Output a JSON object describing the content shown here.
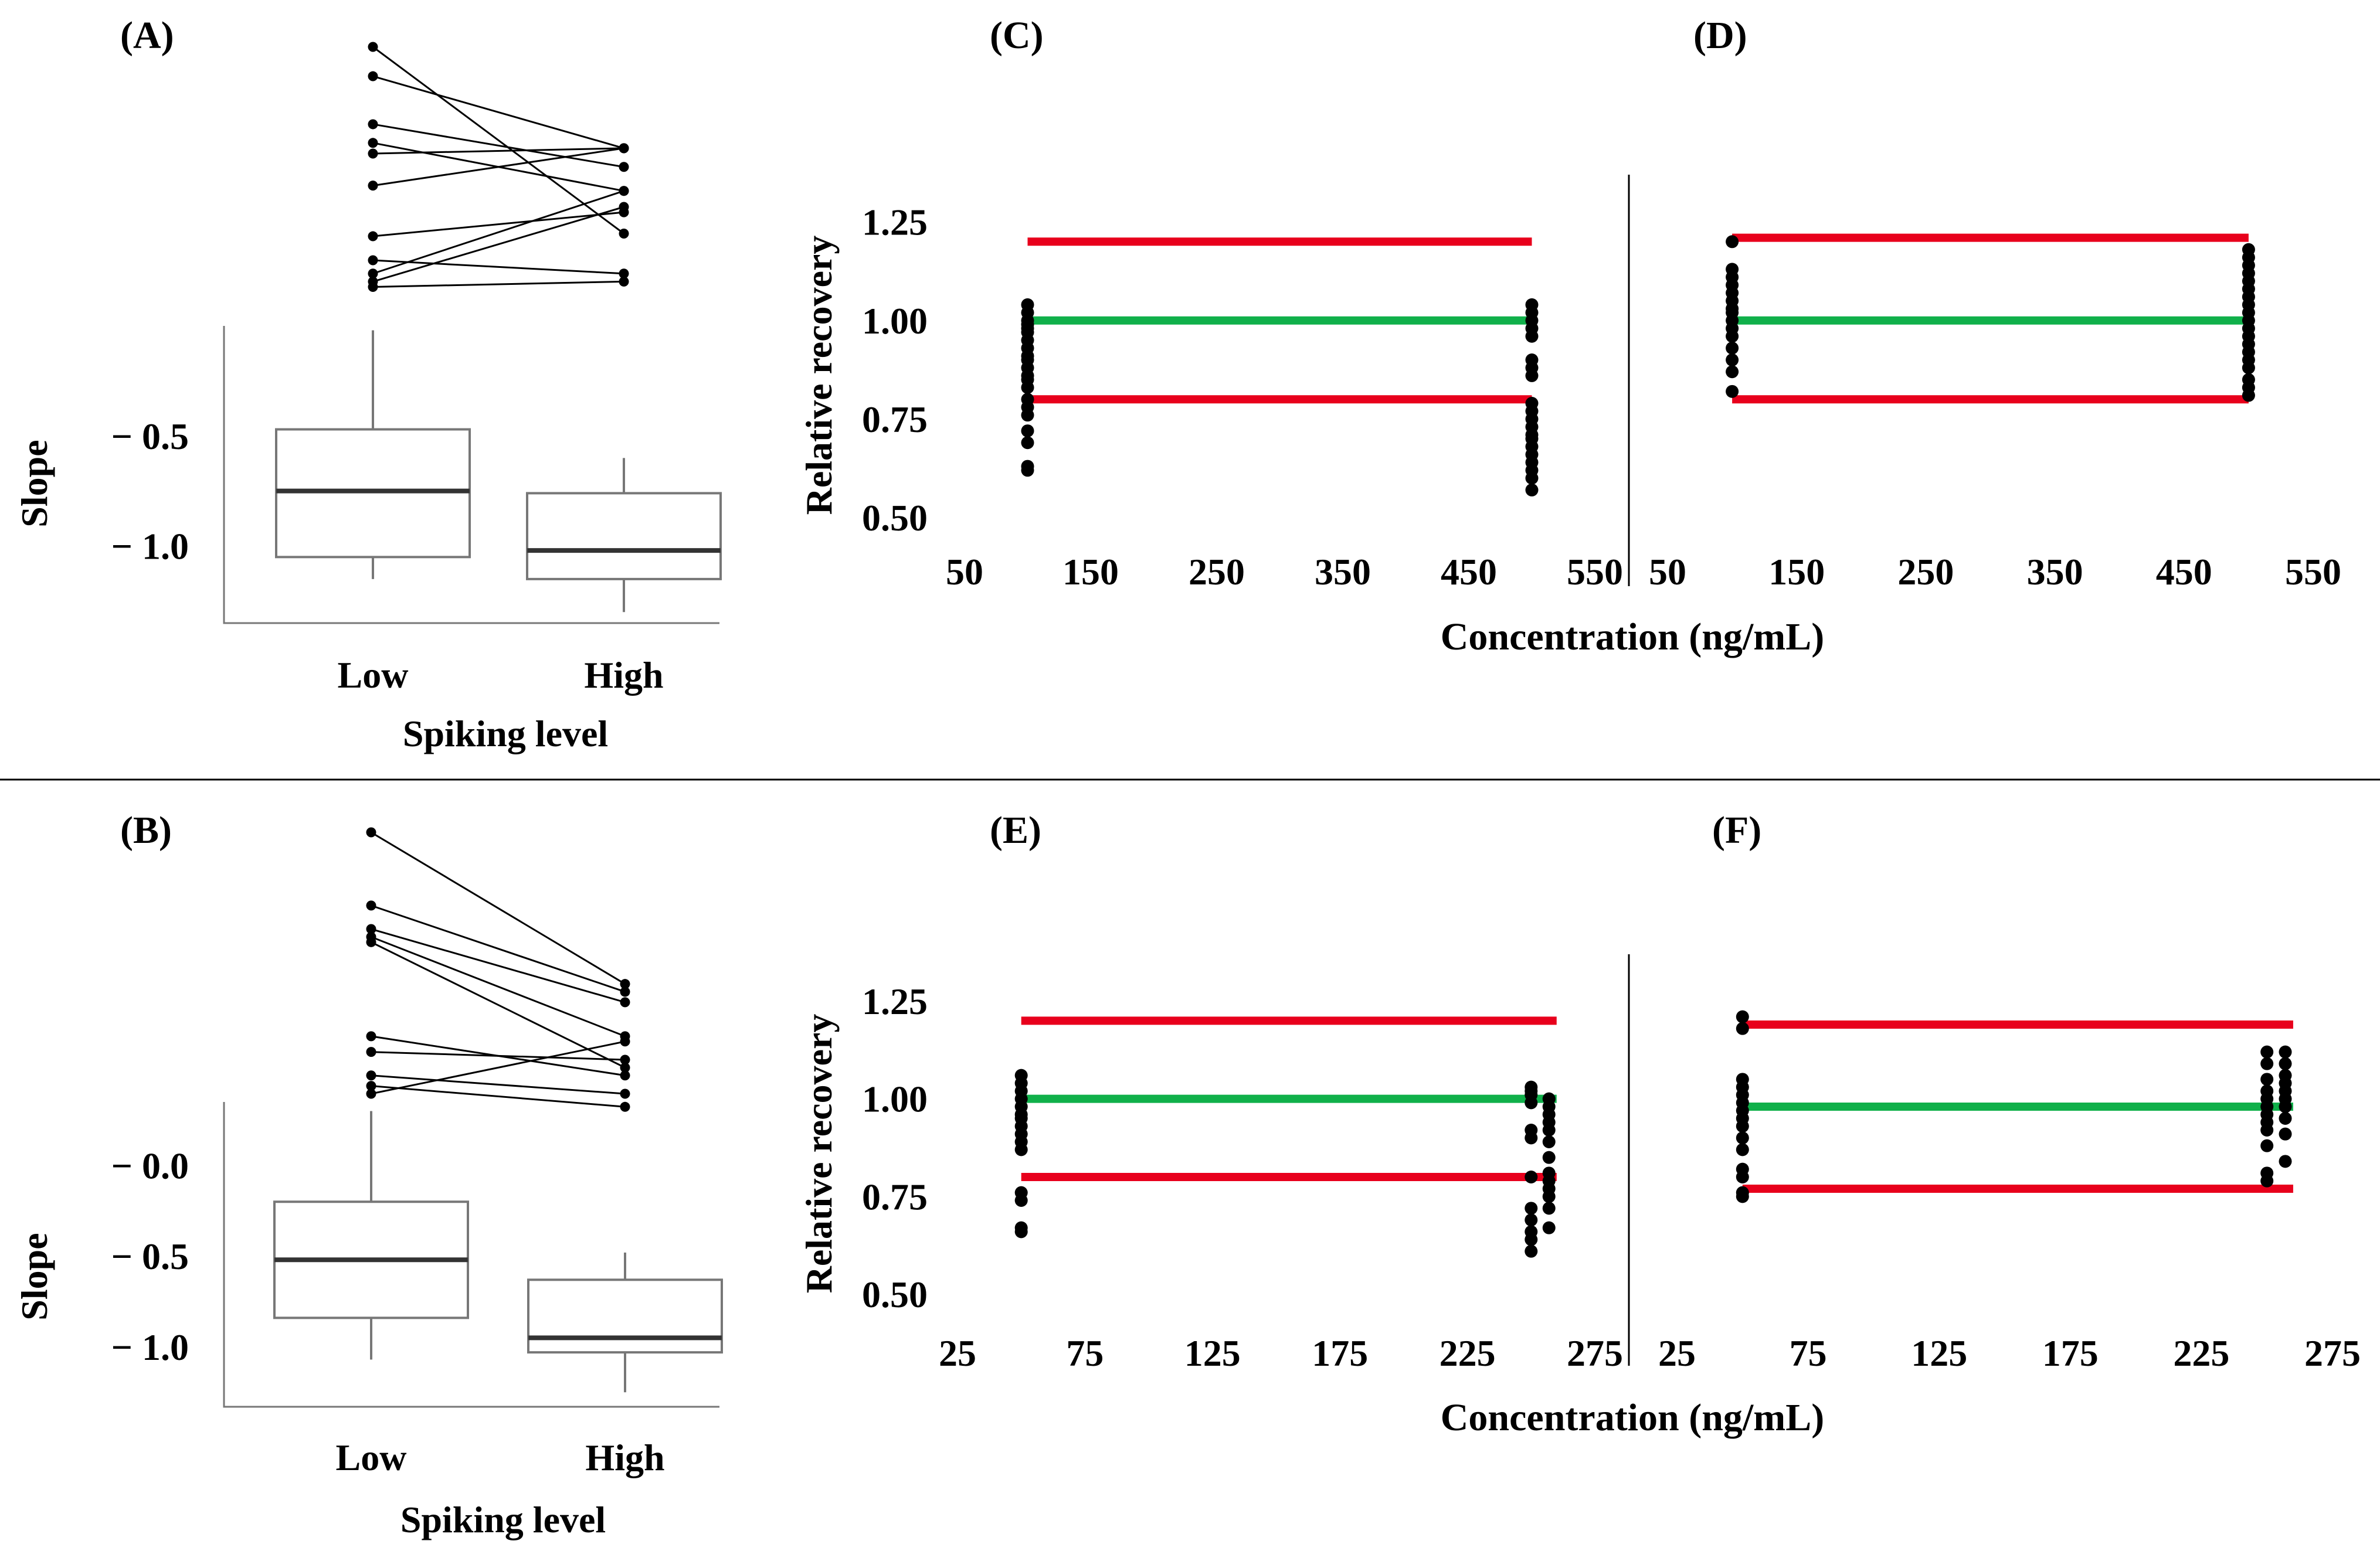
{
  "colors": {
    "limit_line": "#e8001c",
    "center_line": "#10b04a",
    "point": "#000000",
    "box": "#777777",
    "median": "#333333"
  },
  "chart_data": [
    {
      "panel": "(A)",
      "type": "box",
      "ylabel": "Slope",
      "xlabel": "Spiking level",
      "categories": [
        "Low",
        "High"
      ],
      "y_ticks": [
        "− 0.5",
        "− 1.0"
      ],
      "y_tick_values": [
        -0.5,
        -1.0
      ],
      "ylim": [
        -1.35,
        0.0
      ],
      "boxes": [
        {
          "category": "Low",
          "whisker_low": -1.15,
          "q1": -1.05,
          "median": -0.75,
          "q3": -0.47,
          "whisker_high": -0.02
        },
        {
          "category": "High",
          "whisker_low": -1.3,
          "q1": -1.15,
          "median": -1.02,
          "q3": -0.76,
          "whisker_high": -0.6
        }
      ],
      "paired_low": [
        1.0,
        0.89,
        0.71,
        0.64,
        0.6,
        0.48,
        0.29,
        0.2,
        0.15,
        0.12,
        0.1
      ],
      "paired_high": [
        0.3,
        0.62,
        0.55,
        0.46,
        0.62,
        0.62,
        0.38,
        0.15,
        0.46,
        0.4,
        0.12
      ],
      "paired_note": "paired points in relative scale (0 = lowest, 1 = highest) above the box plot"
    },
    {
      "panel": "(B)",
      "type": "box",
      "ylabel": "Slope",
      "xlabel": "Spiking level",
      "categories": [
        "Low",
        "High"
      ],
      "y_ticks": [
        "− 0.0",
        "− 0.5",
        "− 1.0"
      ],
      "y_tick_values": [
        0.0,
        -0.5,
        -1.0
      ],
      "ylim": [
        -1.33,
        0.35
      ],
      "boxes": [
        {
          "category": "Low",
          "whisker_low": -1.07,
          "q1": -0.84,
          "median": -0.52,
          "q3": -0.2,
          "whisker_high": 0.3
        },
        {
          "category": "High",
          "whisker_low": -1.25,
          "q1": -1.03,
          "median": -0.95,
          "q3": -0.63,
          "whisker_high": -0.48
        }
      ],
      "paired_low": [
        1.0,
        0.72,
        0.63,
        0.6,
        0.58,
        0.22,
        0.16,
        0.07,
        0.03,
        0.0
      ],
      "paired_high": [
        0.42,
        0.39,
        0.35,
        0.22,
        0.1,
        0.07,
        0.13,
        0.0,
        -0.05,
        0.2
      ],
      "paired_note": "paired points in relative scale (0 = lowest, 1 = highest) above the box plot"
    },
    {
      "panel": "(C)",
      "type": "scatter",
      "ylabel": "Relative recovery",
      "xlabel": "Concentration (ng/mL)",
      "xlim": [
        50,
        550
      ],
      "ylim": [
        0.5,
        1.37
      ],
      "x_ticks": [
        50,
        150,
        250,
        350,
        450,
        550
      ],
      "y_ticks": [
        "0.50",
        "0.75",
        "1.00",
        "1.25"
      ],
      "y_tick_values": [
        0.5,
        0.75,
        1.0,
        1.25
      ],
      "lines": [
        {
          "name": "upper limit",
          "y": 1.2,
          "x_range": [
            100,
            500
          ],
          "color_key": "limit_line"
        },
        {
          "name": "target",
          "y": 1.0,
          "x_range": [
            100,
            500
          ],
          "color_key": "center_line"
        },
        {
          "name": "lower limit",
          "y": 0.8,
          "x_range": [
            100,
            500
          ],
          "color_key": "limit_line"
        }
      ],
      "series": [
        {
          "x": 100,
          "values": [
            1.04,
            1.02,
            1.0,
            0.99,
            0.98,
            0.97,
            0.95,
            0.93,
            0.91,
            0.9,
            0.88,
            0.86,
            0.85,
            0.83,
            0.8,
            0.78,
            0.76,
            0.72,
            0.69,
            0.63,
            0.62
          ]
        },
        {
          "x": 500,
          "values": [
            1.04,
            1.02,
            1.0,
            0.98,
            0.96,
            0.9,
            0.88,
            0.86,
            0.79,
            0.77,
            0.75,
            0.73,
            0.71,
            0.7,
            0.68,
            0.66,
            0.64,
            0.62,
            0.6,
            0.57
          ]
        }
      ]
    },
    {
      "panel": "(D)",
      "type": "scatter",
      "ylabel": "",
      "xlabel": "Concentration (ng/mL)",
      "xlim": [
        50,
        550
      ],
      "ylim": [
        0.5,
        1.37
      ],
      "x_ticks": [
        50,
        150,
        250,
        350,
        450,
        550
      ],
      "lines": [
        {
          "name": "upper limit",
          "y": 1.21,
          "x_range": [
            100,
            500
          ],
          "color_key": "limit_line"
        },
        {
          "name": "target",
          "y": 1.0,
          "x_range": [
            100,
            500
          ],
          "color_key": "center_line"
        },
        {
          "name": "lower limit",
          "y": 0.8,
          "x_range": [
            100,
            500
          ],
          "color_key": "limit_line"
        }
      ],
      "series": [
        {
          "x": 100,
          "values": [
            1.2,
            1.13,
            1.11,
            1.09,
            1.07,
            1.05,
            1.03,
            1.02,
            1.0,
            0.98,
            0.96,
            0.93,
            0.9,
            0.87,
            0.82
          ]
        },
        {
          "x": 500,
          "values": [
            1.18,
            1.16,
            1.14,
            1.12,
            1.1,
            1.08,
            1.06,
            1.04,
            1.02,
            1.0,
            0.98,
            0.96,
            0.94,
            0.92,
            0.9,
            0.88,
            0.85,
            0.83,
            0.81
          ]
        }
      ]
    },
    {
      "panel": "(E)",
      "type": "scatter",
      "ylabel": "Relative recovery",
      "xlabel": "Concentration (ng/mL)",
      "xlim": [
        25,
        275
      ],
      "ylim": [
        0.5,
        1.37
      ],
      "x_ticks": [
        25,
        75,
        125,
        175,
        225,
        275
      ],
      "y_ticks": [
        "0.50",
        "0.75",
        "1.00",
        "1.25"
      ],
      "y_tick_values": [
        0.5,
        0.75,
        1.0,
        1.25
      ],
      "lines": [
        {
          "name": "upper limit",
          "y": 1.2,
          "x_range": [
            50,
            260
          ],
          "color_key": "limit_line"
        },
        {
          "name": "target",
          "y": 1.0,
          "x_range": [
            50,
            260
          ],
          "color_key": "center_line"
        },
        {
          "name": "lower limit",
          "y": 0.8,
          "x_range": [
            50,
            260
          ],
          "color_key": "limit_line"
        }
      ],
      "series": [
        {
          "x": 50,
          "values": [
            1.06,
            1.04,
            1.02,
            1.0,
            0.98,
            0.96,
            0.95,
            0.93,
            0.91,
            0.89,
            0.87,
            0.76,
            0.74,
            0.67,
            0.66
          ]
        },
        {
          "x": 250,
          "values": [
            1.03,
            1.02,
            1.01,
            0.99,
            0.92,
            0.9,
            0.8,
            0.72,
            0.69,
            0.66,
            0.64,
            0.61
          ]
        },
        {
          "x": 257,
          "values": [
            1.0,
            0.98,
            0.96,
            0.94,
            0.92,
            0.89,
            0.85,
            0.81,
            0.79,
            0.77,
            0.75,
            0.72,
            0.67
          ]
        }
      ]
    },
    {
      "panel": "(F)",
      "type": "scatter",
      "ylabel": "",
      "xlabel": "",
      "xlim": [
        25,
        275
      ],
      "ylim": [
        0.5,
        1.37
      ],
      "x_ticks": [
        25,
        75,
        125,
        175,
        225,
        275
      ],
      "lines": [
        {
          "name": "upper limit",
          "y": 1.19,
          "x_range": [
            50,
            260
          ],
          "color_key": "limit_line"
        },
        {
          "name": "target",
          "y": 0.98,
          "x_range": [
            50,
            260
          ],
          "color_key": "center_line"
        },
        {
          "name": "lower limit",
          "y": 0.77,
          "x_range": [
            50,
            260
          ],
          "color_key": "limit_line"
        }
      ],
      "series": [
        {
          "x": 50,
          "values": [
            1.21,
            1.18,
            1.05,
            1.03,
            1.01,
            0.99,
            0.97,
            0.95,
            0.93,
            0.9,
            0.87,
            0.82,
            0.8,
            0.76,
            0.75
          ]
        },
        {
          "x": 250,
          "values": [
            1.12,
            1.09,
            1.05,
            1.02,
            1.0,
            0.98,
            0.96,
            0.94,
            0.92,
            0.88,
            0.81,
            0.79
          ]
        },
        {
          "x": 257,
          "values": [
            1.12,
            1.09,
            1.06,
            1.04,
            1.02,
            1.0,
            0.98,
            0.95,
            0.91,
            0.84
          ]
        }
      ]
    }
  ],
  "shared_xlabel_top": "Concentration (ng/mL)",
  "shared_xlabel_bottom": "Concentration (ng/mL)"
}
